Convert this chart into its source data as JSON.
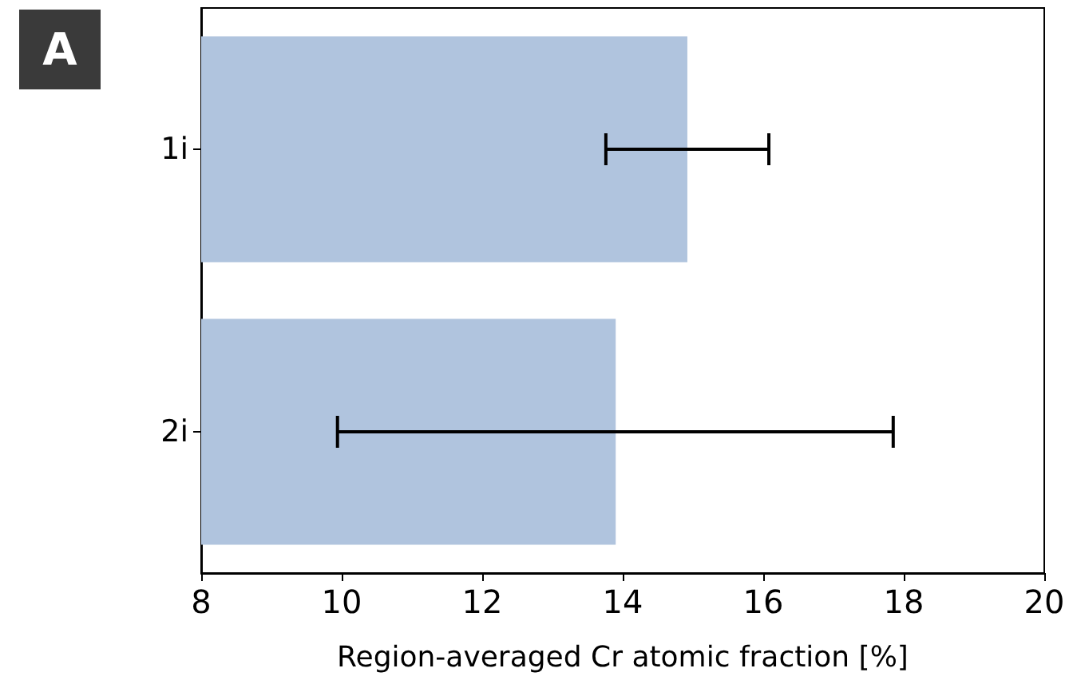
{
  "chart_data": {
    "type": "bar",
    "orientation": "horizontal",
    "xlabel": "Region-averaged Cr atomic fraction [%]",
    "annotations": [
      "A"
    ],
    "categories": [
      "1i",
      "2i"
    ],
    "values": [
      14.92,
      13.9
    ],
    "color": "#b0c4de",
    "errors": [
      [
        13.76,
        16.08
      ],
      [
        9.94,
        17.85
      ]
    ],
    "xlim": [
      8,
      20
    ],
    "xticks": [
      8,
      10,
      12,
      14,
      16,
      18,
      20
    ]
  }
}
